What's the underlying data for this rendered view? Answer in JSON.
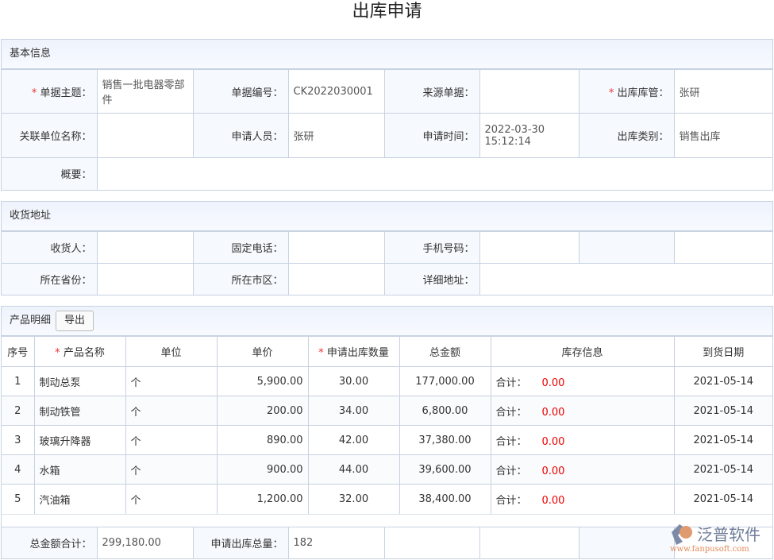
{
  "title": "出库申请",
  "basic": {
    "header": "基本信息",
    "subject_label": "单据主题：",
    "subject": "销售一批电器零部件",
    "number_label": "单据编号：",
    "number": "CK2022030001",
    "source_label": "来源单据：",
    "source": "",
    "keeper_label": "出库库管：",
    "keeper": "张研",
    "unit_label": "关联单位名称：",
    "unit": "",
    "applicant_label": "申请人员：",
    "applicant": "张研",
    "time_label": "申请时间：",
    "time": "2022-03-30 15:12:14",
    "type_label": "出库类别：",
    "type": "销售出库",
    "summary_label": "概要：",
    "summary": ""
  },
  "address": {
    "header": "收货地址",
    "receiver_label": "收货人：",
    "phone_label": "固定电话：",
    "mobile_label": "手机号码：",
    "province_label": "所在省份：",
    "city_label": "所在市区：",
    "detail_label": "详细地址："
  },
  "products": {
    "header": "产品明细",
    "export_label": "导出",
    "columns": [
      "序号",
      "产品名称",
      "单位",
      "单价",
      "申请出库数量",
      "总金额",
      "库存信息",
      "到货日期"
    ],
    "rows": [
      {
        "no": "1",
        "name": "制动总泵",
        "unit": "个",
        "price": "5,900.00",
        "qty": "30.00",
        "total": "177,000.00",
        "stock_label": "合计：",
        "stock": "0.00",
        "date": "2021-05-14"
      },
      {
        "no": "2",
        "name": "制动铁管",
        "unit": "个",
        "price": "200.00",
        "qty": "34.00",
        "total": "6,800.00",
        "stock_label": "合计：",
        "stock": "0.00",
        "date": "2021-05-14"
      },
      {
        "no": "3",
        "name": "玻璃升降器",
        "unit": "个",
        "price": "890.00",
        "qty": "42.00",
        "total": "37,380.00",
        "stock_label": "合计：",
        "stock": "0.00",
        "date": "2021-05-14"
      },
      {
        "no": "4",
        "name": "水箱",
        "unit": "个",
        "price": "900.00",
        "qty": "44.00",
        "total": "39,600.00",
        "stock_label": "合计：",
        "stock": "0.00",
        "date": "2021-05-14"
      },
      {
        "no": "5",
        "name": "汽油箱",
        "unit": "个",
        "price": "1,200.00",
        "qty": "32.00",
        "total": "38,400.00",
        "stock_label": "合计：",
        "stock": "0.00",
        "date": "2021-05-14"
      }
    ],
    "sum_amount_label": "总金额合计：",
    "sum_amount": "299,180.00",
    "sum_qty_label": "申请出库总量：",
    "sum_qty": "182"
  },
  "logo": {
    "name": "泛普软件",
    "url": "www.fanpusoft.com"
  }
}
